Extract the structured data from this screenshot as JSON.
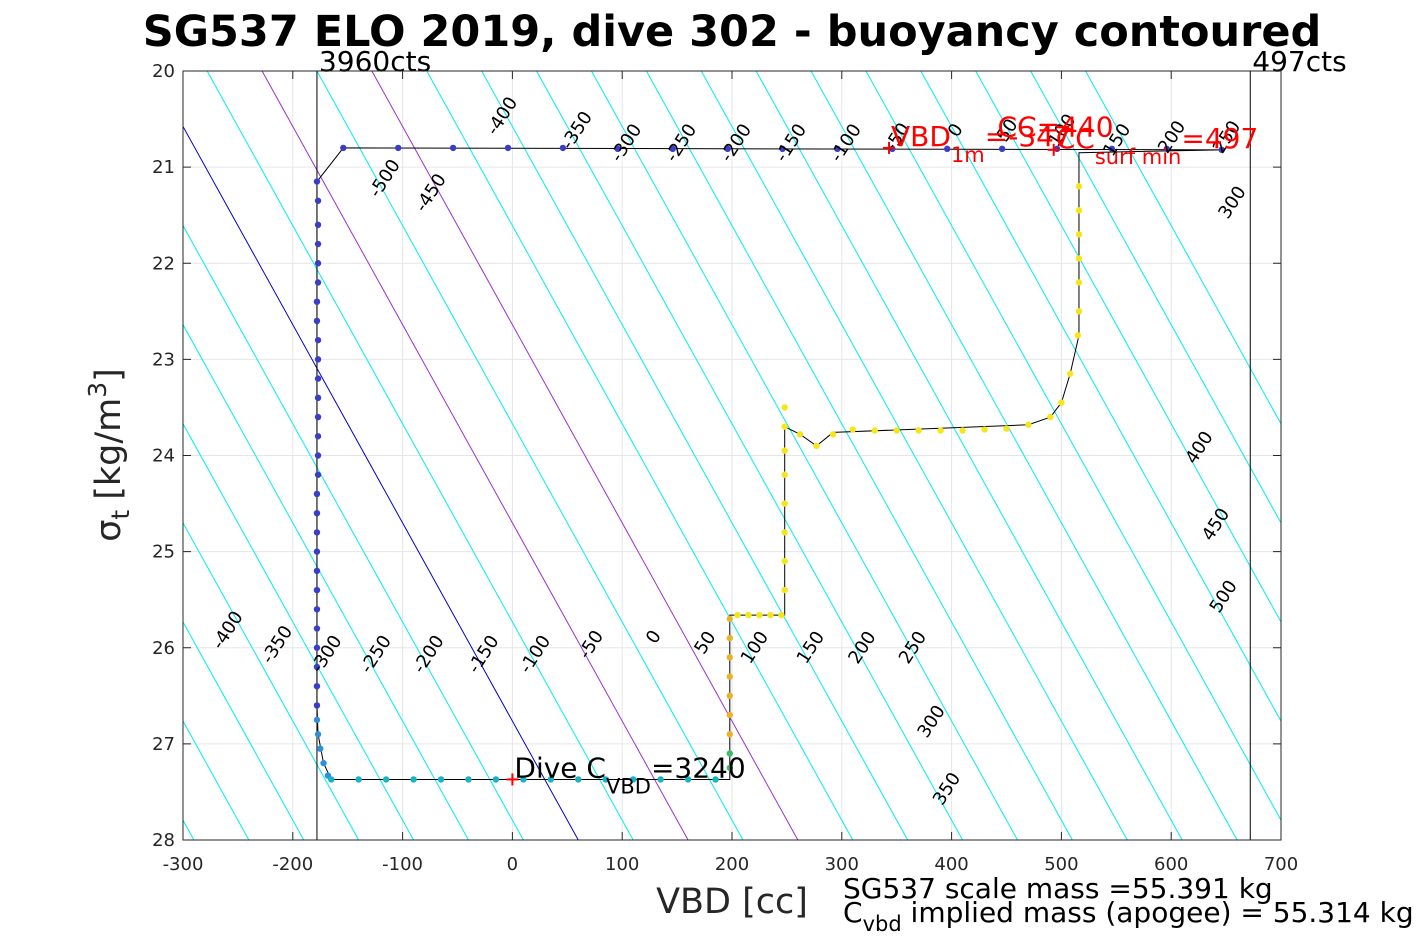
{
  "chart_data": {
    "type": "scatter",
    "title": "SG537 ELO 2019, dive 302 - buoyancy contoured",
    "xlabel": "VBD [cc]",
    "ylabel_sigma": "σ",
    "ylabel_sub": "t",
    "ylabel_units": "[kg/m",
    "ylabel_sup": "3",
    "ylabel_close": "]",
    "xlim": [
      -300,
      700
    ],
    "ylim": [
      20,
      28
    ],
    "y_reversed": true,
    "grid": true,
    "x_ticks": [
      -300,
      -200,
      -100,
      0,
      100,
      200,
      300,
      400,
      500,
      600,
      700
    ],
    "y_ticks": [
      20,
      21,
      22,
      23,
      24,
      25,
      26,
      27,
      28
    ],
    "vertical_lines": [
      {
        "x": -178,
        "label": "3960cts",
        "color": "#000000"
      },
      {
        "x": 672,
        "label": "497cts",
        "color": "#000000"
      }
    ],
    "contour_lines": [
      {
        "level": -550,
        "color": "#00eeee"
      },
      {
        "level": -500,
        "color": "#00eeee"
      },
      {
        "level": -450,
        "color": "#00eeee"
      },
      {
        "level": -400,
        "color": "#00eeee"
      },
      {
        "level": -350,
        "color": "#00eeee"
      },
      {
        "level": -300,
        "color": "#00eeee"
      },
      {
        "level": -250,
        "color": "#00eeee"
      },
      {
        "level": -200,
        "color": "#00eeee"
      },
      {
        "level": -150,
        "color": "#00eeee"
      },
      {
        "level": -100,
        "color": "#00eeee"
      },
      {
        "level": -50,
        "color": "#00eeee"
      },
      {
        "level": 0,
        "color": "#0000cc"
      },
      {
        "level": 50,
        "color": "#00eeee"
      },
      {
        "level": 100,
        "color": "#9932cc"
      },
      {
        "level": 150,
        "color": "#00eeee"
      },
      {
        "level": 200,
        "color": "#9932cc"
      },
      {
        "level": 250,
        "color": "#00eeee"
      },
      {
        "level": 300,
        "color": "#00eeee"
      },
      {
        "level": 350,
        "color": "#00eeee"
      },
      {
        "level": 400,
        "color": "#00eeee"
      },
      {
        "level": 450,
        "color": "#00eeee"
      },
      {
        "level": 500,
        "color": "#00eeee"
      },
      {
        "level": 550,
        "color": "#00eeee"
      },
      {
        "level": 600,
        "color": "#00eeee"
      },
      {
        "level": 650,
        "color": "#00eeee"
      },
      {
        "level": 700,
        "color": "#00eeee"
      },
      {
        "level": 750,
        "color": "#00eeee"
      },
      {
        "level": 800,
        "color": "#00eeee"
      },
      {
        "level": 850,
        "color": "#00eeee"
      }
    ],
    "contour_labels": [
      {
        "text": "-400",
        "x": -5,
        "y": 20.5
      },
      {
        "text": "-350",
        "x": 63,
        "y": 20.65
      },
      {
        "text": "-300",
        "x": 108,
        "y": 20.78
      },
      {
        "text": "-250",
        "x": 158,
        "y": 20.78
      },
      {
        "text": "-200",
        "x": 208,
        "y": 20.78
      },
      {
        "text": "-150",
        "x": 258,
        "y": 20.78
      },
      {
        "text": "-100",
        "x": 308,
        "y": 20.78
      },
      {
        "text": "-50",
        "x": 355,
        "y": 20.72
      },
      {
        "text": "0",
        "x": 408,
        "y": 20.65
      },
      {
        "text": "50",
        "x": 455,
        "y": 20.65
      },
      {
        "text": "100",
        "x": 505,
        "y": 20.65
      },
      {
        "text": "150",
        "x": 555,
        "y": 20.75
      },
      {
        "text": "200",
        "x": 605,
        "y": 20.72
      },
      {
        "text": "250",
        "x": 655,
        "y": 20.72
      },
      {
        "text": "-500",
        "x": -112,
        "y": 21.15
      },
      {
        "text": "-450",
        "x": -70,
        "y": 21.3
      },
      {
        "text": "300",
        "x": 660,
        "y": 21.4
      },
      {
        "text": "400",
        "x": 630,
        "y": 23.95
      },
      {
        "text": "450",
        "x": 645,
        "y": 24.75
      },
      {
        "text": "500",
        "x": 652,
        "y": 25.5
      },
      {
        "text": "-400",
        "x": -255,
        "y": 25.85
      },
      {
        "text": "-350",
        "x": -210,
        "y": 26.0
      },
      {
        "text": "-300",
        "x": -165,
        "y": 26.1
      },
      {
        "text": "-250",
        "x": -120,
        "y": 26.1
      },
      {
        "text": "-200",
        "x": -72,
        "y": 26.1
      },
      {
        "text": "-150",
        "x": -22,
        "y": 26.1
      },
      {
        "text": "-100",
        "x": 25,
        "y": 26.1
      },
      {
        "text": "-50",
        "x": 76,
        "y": 26.0
      },
      {
        "text": "0",
        "x": 133,
        "y": 25.92
      },
      {
        "text": "50",
        "x": 180,
        "y": 25.98
      },
      {
        "text": "100",
        "x": 225,
        "y": 26.03
      },
      {
        "text": "150",
        "x": 276,
        "y": 26.03
      },
      {
        "text": "200",
        "x": 323,
        "y": 26.03
      },
      {
        "text": "250",
        "x": 369,
        "y": 26.03
      },
      {
        "text": "300",
        "x": 386,
        "y": 26.8
      },
      {
        "text": "350",
        "x": 400,
        "y": 27.5
      }
    ],
    "series": [
      {
        "marker_color": "#3a3dc6",
        "points": [
          {
            "x": -178,
            "y": 21.15
          },
          {
            "x": -177,
            "y": 21.35
          },
          {
            "x": -177,
            "y": 21.6
          },
          {
            "x": -177,
            "y": 21.8
          },
          {
            "x": -177,
            "y": 22.0
          },
          {
            "x": -177,
            "y": 22.2
          },
          {
            "x": -178,
            "y": 22.4
          },
          {
            "x": -178,
            "y": 22.6
          },
          {
            "x": -177,
            "y": 22.8
          },
          {
            "x": -177,
            "y": 23.0
          },
          {
            "x": -177,
            "y": 23.2
          },
          {
            "x": -177,
            "y": 23.4
          },
          {
            "x": -177,
            "y": 23.6
          },
          {
            "x": -177,
            "y": 23.8
          },
          {
            "x": -177,
            "y": 24.0
          },
          {
            "x": -177,
            "y": 24.2
          },
          {
            "x": -178,
            "y": 24.4
          },
          {
            "x": -178,
            "y": 24.6
          },
          {
            "x": -178,
            "y": 24.8
          },
          {
            "x": -178,
            "y": 25.0
          },
          {
            "x": -178,
            "y": 25.2
          },
          {
            "x": -178,
            "y": 25.4
          },
          {
            "x": -178,
            "y": 25.6
          },
          {
            "x": -178,
            "y": 25.8
          },
          {
            "x": -178,
            "y": 26.0
          },
          {
            "x": -178,
            "y": 26.2
          },
          {
            "x": -178,
            "y": 26.4
          },
          {
            "x": -178,
            "y": 26.6
          },
          {
            "x": -154,
            "y": 20.8
          },
          {
            "x": -104,
            "y": 20.8
          },
          {
            "x": -54,
            "y": 20.8
          },
          {
            "x": -4,
            "y": 20.8
          },
          {
            "x": 46,
            "y": 20.8
          },
          {
            "x": 96,
            "y": 20.81
          },
          {
            "x": 146,
            "y": 20.81
          },
          {
            "x": 196,
            "y": 20.81
          },
          {
            "x": 246,
            "y": 20.81
          },
          {
            "x": 296,
            "y": 20.81
          },
          {
            "x": 346,
            "y": 20.81
          },
          {
            "x": 396,
            "y": 20.81
          },
          {
            "x": 446,
            "y": 20.81
          },
          {
            "x": 496,
            "y": 20.81
          },
          {
            "x": 546,
            "y": 20.81
          },
          {
            "x": 596,
            "y": 20.81
          },
          {
            "x": 646,
            "y": 20.82
          }
        ]
      },
      {
        "marker_color": "#2f8fd8",
        "points": [
          {
            "x": -178,
            "y": 26.75
          },
          {
            "x": -177,
            "y": 26.9
          },
          {
            "x": -175,
            "y": 27.05
          },
          {
            "x": -172,
            "y": 27.2
          },
          {
            "x": -168,
            "y": 27.33
          }
        ]
      },
      {
        "marker_color": "#17b4c8",
        "points": [
          {
            "x": -165,
            "y": 27.37
          },
          {
            "x": -140,
            "y": 27.37
          },
          {
            "x": -115,
            "y": 27.37
          },
          {
            "x": -90,
            "y": 27.37
          },
          {
            "x": -65,
            "y": 27.37
          },
          {
            "x": -40,
            "y": 27.37
          },
          {
            "x": -15,
            "y": 27.37
          },
          {
            "x": 10,
            "y": 27.37
          },
          {
            "x": 35,
            "y": 27.37
          },
          {
            "x": 60,
            "y": 27.37
          },
          {
            "x": 85,
            "y": 27.37
          },
          {
            "x": 110,
            "y": 27.37
          },
          {
            "x": 135,
            "y": 27.37
          },
          {
            "x": 160,
            "y": 27.37
          },
          {
            "x": 185,
            "y": 27.37
          }
        ]
      },
      {
        "marker_color": "#3dbb6e",
        "points": [
          {
            "x": 198,
            "y": 27.25
          },
          {
            "x": 198,
            "y": 27.1
          }
        ]
      },
      {
        "marker_color": "#e7b42a",
        "points": [
          {
            "x": 198,
            "y": 26.9
          },
          {
            "x": 198,
            "y": 26.7
          },
          {
            "x": 198,
            "y": 26.5
          },
          {
            "x": 198,
            "y": 26.3
          },
          {
            "x": 198,
            "y": 26.1
          },
          {
            "x": 198,
            "y": 25.9
          },
          {
            "x": 198,
            "y": 25.7
          }
        ]
      },
      {
        "marker_color": "#f5e61c",
        "points": [
          {
            "x": 205,
            "y": 25.66
          },
          {
            "x": 215,
            "y": 25.66
          },
          {
            "x": 225,
            "y": 25.66
          },
          {
            "x": 235,
            "y": 25.66
          },
          {
            "x": 245,
            "y": 25.66
          },
          {
            "x": 248,
            "y": 25.4
          },
          {
            "x": 248,
            "y": 25.1
          },
          {
            "x": 248,
            "y": 24.8
          },
          {
            "x": 248,
            "y": 24.5
          },
          {
            "x": 248,
            "y": 24.2
          },
          {
            "x": 248,
            "y": 23.95
          },
          {
            "x": 248,
            "y": 23.7
          },
          {
            "x": 248,
            "y": 23.5
          },
          {
            "x": 262,
            "y": 23.78
          },
          {
            "x": 277,
            "y": 23.9
          },
          {
            "x": 292,
            "y": 23.78
          },
          {
            "x": 310,
            "y": 23.73
          },
          {
            "x": 330,
            "y": 23.74
          },
          {
            "x": 350,
            "y": 23.74
          },
          {
            "x": 370,
            "y": 23.74
          },
          {
            "x": 390,
            "y": 23.74
          },
          {
            "x": 410,
            "y": 23.74
          },
          {
            "x": 430,
            "y": 23.73
          },
          {
            "x": 450,
            "y": 23.72
          },
          {
            "x": 470,
            "y": 23.68
          },
          {
            "x": 490,
            "y": 23.6
          },
          {
            "x": 500,
            "y": 23.45
          },
          {
            "x": 508,
            "y": 23.15
          },
          {
            "x": 515,
            "y": 22.75
          },
          {
            "x": 516,
            "y": 22.5
          },
          {
            "x": 516,
            "y": 22.2
          },
          {
            "x": 516,
            "y": 21.95
          },
          {
            "x": 516,
            "y": 21.7
          },
          {
            "x": 516,
            "y": 21.45
          },
          {
            "x": 516,
            "y": 21.2
          }
        ]
      }
    ],
    "trace_line": [
      {
        "x": -178,
        "y": 21.15
      },
      {
        "x": -154,
        "y": 20.8
      },
      {
        "x": 646,
        "y": 20.82
      },
      {
        "x": 516,
        "y": 20.85
      },
      {
        "x": 516,
        "y": 22.75
      },
      {
        "x": 508,
        "y": 23.15
      },
      {
        "x": 500,
        "y": 23.45
      },
      {
        "x": 490,
        "y": 23.6
      },
      {
        "x": 470,
        "y": 23.68
      },
      {
        "x": 292,
        "y": 23.76
      },
      {
        "x": 277,
        "y": 23.9
      },
      {
        "x": 262,
        "y": 23.78
      },
      {
        "x": 248,
        "y": 23.7
      },
      {
        "x": 248,
        "y": 25.66
      },
      {
        "x": 198,
        "y": 25.66
      },
      {
        "x": 198,
        "y": 27.37
      },
      {
        "x": -165,
        "y": 27.37
      },
      {
        "x": -172,
        "y": 27.2
      },
      {
        "x": -177,
        "y": 26.9
      },
      {
        "x": -178,
        "y": 26.6
      },
      {
        "x": -178,
        "y": 21.15
      }
    ],
    "annotations": [
      {
        "id": "dive-c-vbd",
        "text": "Dive C",
        "sub": "VBD",
        "post": "=3240",
        "x": 0,
        "y": 27.37,
        "color": "#000000",
        "marker": true
      },
      {
        "id": "vbd-1m",
        "text": "VBD",
        "sub": "1m",
        "post": "=-347",
        "x": 343,
        "y": 20.8,
        "color": "#ff0000",
        "marker": true
      },
      {
        "id": "cc-440",
        "text": "CC",
        "sub": "",
        "post": "=440",
        "x": 440,
        "y": 20.7,
        "color": "#ff0000",
        "marker": false
      },
      {
        "id": "cc-surf-min",
        "text": "CC",
        "sub": "surf min",
        "post": "=497",
        "x": 493,
        "y": 20.82,
        "color": "#ff0000",
        "marker": true
      }
    ],
    "footer": {
      "scale_mass": "SG537 scale mass =55.391 kg",
      "implied_mass_c": "C",
      "implied_mass_sub": "vbd",
      "implied_mass_text": " implied mass (apogee) = 55.314 kg"
    }
  }
}
